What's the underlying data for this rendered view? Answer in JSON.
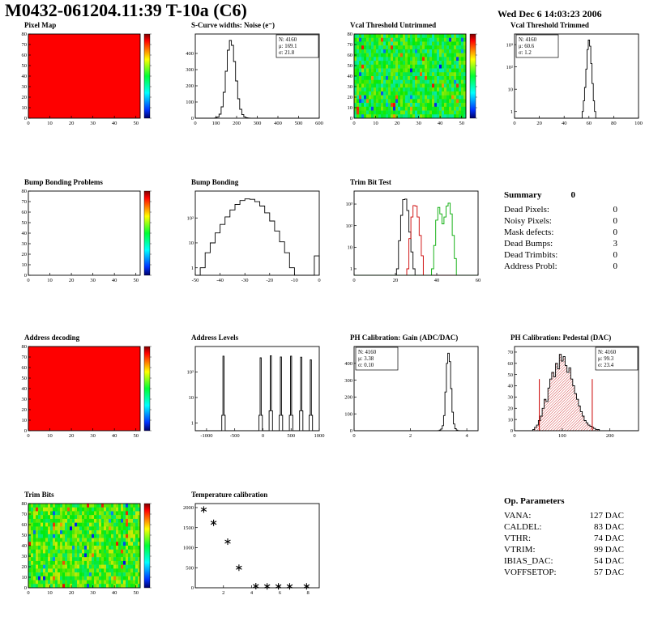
{
  "header": {
    "title": "M0432-061204.11:39 T-10a (C6)",
    "timestamp": "Wed Dec 6 14:03:23 2006"
  },
  "summary": {
    "title": "Summary",
    "count": "0",
    "rows": [
      {
        "label": "Dead Pixels:",
        "value": "0"
      },
      {
        "label": "Noisy Pixels:",
        "value": "0"
      },
      {
        "label": "Mask defects:",
        "value": "0"
      },
      {
        "label": "Dead Bumps:",
        "value": "3"
      },
      {
        "label": "Dead Trimbits:",
        "value": "0"
      },
      {
        "label": "Address Probl:",
        "value": "0"
      }
    ]
  },
  "op_parameters": {
    "title": "Op. Parameters",
    "rows": [
      {
        "label": "VANA:",
        "value": "127 DAC"
      },
      {
        "label": "CALDEL:",
        "value": "83 DAC"
      },
      {
        "label": "VTHR:",
        "value": "74 DAC"
      },
      {
        "label": "VTRIM:",
        "value": "99 DAC"
      },
      {
        "label": "IBIAS_DAC:",
        "value": "54 DAC"
      },
      {
        "label": "VOFFSETOP:",
        "value": "57 DAC"
      }
    ]
  },
  "colors": {
    "accent_red": "#cc0000",
    "hist_line": "#000000",
    "trim_green": "#00aa00",
    "heat_red": "#fe0000"
  },
  "chart_data": [
    {
      "title": "Pixel Map",
      "type": "heatmap",
      "heat": "red",
      "colorbar": true,
      "xlim": [
        0,
        52
      ],
      "ylim": [
        0,
        80
      ],
      "x_ticks": [
        0,
        10,
        20,
        30,
        40,
        50
      ],
      "y_ticks": [
        0,
        10,
        20,
        30,
        40,
        50,
        60,
        70,
        80
      ]
    },
    {
      "title": "S-Curve widths: Noise (e⁻)",
      "type": "hist",
      "xlim": [
        0,
        600
      ],
      "ylim": [
        0,
        520
      ],
      "x_ticks": [
        0,
        100,
        200,
        300,
        400,
        500,
        600
      ],
      "y_ticks": [
        0,
        100,
        200,
        300,
        400
      ],
      "binw": 10,
      "points": [
        [
          100,
          2
        ],
        [
          110,
          8
        ],
        [
          120,
          25
        ],
        [
          130,
          70
        ],
        [
          140,
          160
        ],
        [
          150,
          290
        ],
        [
          160,
          420
        ],
        [
          170,
          480
        ],
        [
          180,
          450
        ],
        [
          190,
          350
        ],
        [
          200,
          230
        ],
        [
          210,
          120
        ],
        [
          220,
          55
        ],
        [
          230,
          22
        ],
        [
          240,
          8
        ],
        [
          250,
          3
        ],
        [
          260,
          1
        ]
      ],
      "stats": {
        "pos": "tr",
        "lines": [
          "N: 4160",
          "μ: 169.1",
          "σ: 21.8"
        ]
      }
    },
    {
      "title": "Vcal Threshold Untrimmed",
      "type": "heatmap",
      "heat": "noise",
      "noise_base": 0.48,
      "colorbar": true,
      "xlim": [
        0,
        52
      ],
      "ylim": [
        0,
        80
      ],
      "x_ticks": [
        0,
        10,
        20,
        30,
        40,
        50
      ],
      "y_ticks": [
        0,
        10,
        20,
        30,
        40,
        50,
        60,
        70,
        80
      ]
    },
    {
      "title": "Vcal Threshold Trimmed",
      "type": "hist",
      "ylog": true,
      "xlim": [
        0,
        100
      ],
      "ylim": [
        0.5,
        3000
      ],
      "x_ticks": [
        0,
        20,
        40,
        60,
        80,
        100
      ],
      "y_ticks": [
        [
          1,
          "1"
        ],
        [
          10,
          "10"
        ],
        [
          100,
          "10²"
        ],
        [
          1000,
          "10³"
        ]
      ],
      "binw": 1,
      "points": [
        [
          55,
          1
        ],
        [
          56,
          3
        ],
        [
          57,
          12
        ],
        [
          58,
          80
        ],
        [
          59,
          600
        ],
        [
          60,
          1600
        ],
        [
          61,
          850
        ],
        [
          62,
          140
        ],
        [
          63,
          18
        ],
        [
          64,
          3
        ],
        [
          65,
          1
        ]
      ],
      "stats": {
        "pos": "tl",
        "lines": [
          "N: 4160",
          "μ: 60.6",
          "σ: 1.2"
        ]
      }
    },
    {
      "title": "Bump Bonding Problems",
      "type": "heatmap",
      "heat": "empty",
      "colorbar": true,
      "xlim": [
        0,
        52
      ],
      "ylim": [
        0,
        80
      ],
      "x_ticks": [
        0,
        10,
        20,
        30,
        40,
        50
      ],
      "y_ticks": [
        0,
        10,
        20,
        30,
        40,
        50,
        60,
        70,
        80
      ]
    },
    {
      "title": "Bump Bonding",
      "type": "hist",
      "ylog": true,
      "xlim": [
        -50,
        0
      ],
      "ylim": [
        0.5,
        1200
      ],
      "x_ticks": [
        -50,
        -40,
        -30,
        -20,
        -10,
        0
      ],
      "y_ticks": [
        [
          1,
          "1"
        ],
        [
          10,
          "10"
        ],
        [
          100,
          "10²"
        ]
      ],
      "binw": 2,
      "points": [
        [
          -49,
          0
        ],
        [
          -47,
          1
        ],
        [
          -45,
          4
        ],
        [
          -43,
          10
        ],
        [
          -41,
          25
        ],
        [
          -39,
          55
        ],
        [
          -37,
          110
        ],
        [
          -35,
          210
        ],
        [
          -33,
          350
        ],
        [
          -31,
          500
        ],
        [
          -29,
          580
        ],
        [
          -27,
          560
        ],
        [
          -25,
          450
        ],
        [
          -23,
          300
        ],
        [
          -21,
          160
        ],
        [
          -19,
          75
        ],
        [
          -17,
          30
        ],
        [
          -15,
          11
        ],
        [
          -13,
          4
        ],
        [
          -11,
          1
        ],
        [
          -9,
          0
        ],
        [
          -7,
          0
        ],
        [
          -5,
          0
        ],
        [
          -3,
          0
        ],
        [
          -1,
          3
        ]
      ]
    },
    {
      "title": "Trim Bit Test",
      "type": "hist",
      "ylog": true,
      "xlim": [
        0,
        60
      ],
      "ylim": [
        0.5,
        4000
      ],
      "x_ticks": [
        0,
        20,
        40,
        60
      ],
      "y_ticks": [
        [
          1,
          "1"
        ],
        [
          10,
          "10"
        ],
        [
          100,
          "10²"
        ],
        [
          1000,
          "10³"
        ]
      ],
      "series": [
        {
          "color": "#000000",
          "binw": 1,
          "points": [
            [
              21,
              1
            ],
            [
              22,
              20
            ],
            [
              23,
              300
            ],
            [
              24,
              1600
            ],
            [
              25,
              1700
            ],
            [
              26,
              500
            ],
            [
              27,
              50
            ],
            [
              28,
              6
            ],
            [
              29,
              1
            ]
          ]
        },
        {
          "color": "#cc0000",
          "binw": 1,
          "points": [
            [
              26,
              1
            ],
            [
              27,
              25
            ],
            [
              28,
              250
            ],
            [
              29,
              850
            ],
            [
              30,
              800
            ],
            [
              31,
              250
            ],
            [
              32,
              35
            ],
            [
              33,
              4
            ]
          ]
        },
        {
          "color": "#00aa00",
          "binw": 1,
          "points": [
            [
              38,
              1
            ],
            [
              39,
              12
            ],
            [
              40,
              180
            ],
            [
              41,
              700
            ],
            [
              42,
              350
            ],
            [
              43,
              120
            ],
            [
              44,
              250
            ],
            [
              45,
              800
            ],
            [
              46,
              1100
            ],
            [
              47,
              350
            ],
            [
              48,
              35
            ],
            [
              49,
              3
            ]
          ]
        }
      ]
    },
    {
      "title": "Address decoding",
      "type": "heatmap",
      "heat": "red",
      "colorbar": true,
      "xlim": [
        0,
        52
      ],
      "ylim": [
        0,
        80
      ],
      "x_ticks": [
        0,
        10,
        20,
        30,
        40,
        50
      ],
      "y_ticks": [
        0,
        10,
        20,
        30,
        40,
        50,
        60,
        70,
        80
      ]
    },
    {
      "title": "Address Levels",
      "type": "hist",
      "ylog": true,
      "xlim": [
        -1200,
        1000
      ],
      "ylim": [
        0.5,
        1000
      ],
      "x_ticks": [
        -1000,
        -500,
        0,
        500,
        1000
      ],
      "y_ticks": [
        [
          1,
          "1"
        ],
        [
          10,
          "10"
        ],
        [
          100,
          "10²"
        ]
      ],
      "binw": 20,
      "points": [
        [
          -720,
          2
        ],
        [
          -700,
          420
        ],
        [
          -680,
          2
        ],
        [
          -60,
          2
        ],
        [
          -40,
          360
        ],
        [
          -20,
          2
        ],
        [
          120,
          3
        ],
        [
          140,
          430
        ],
        [
          160,
          3
        ],
        [
          300,
          2
        ],
        [
          320,
          390
        ],
        [
          340,
          2
        ],
        [
          480,
          2
        ],
        [
          500,
          420
        ],
        [
          520,
          2
        ],
        [
          660,
          3
        ],
        [
          680,
          380
        ],
        [
          700,
          3
        ],
        [
          830,
          2
        ],
        [
          850,
          300
        ],
        [
          870,
          2
        ]
      ]
    },
    {
      "title": "PH Calibration: Gain (ADC/DAC)",
      "type": "hist",
      "xlim": [
        0,
        4.4
      ],
      "ylim": [
        0,
        500
      ],
      "x_ticks": [
        0,
        2,
        4
      ],
      "y_ticks": [
        0,
        100,
        200,
        300,
        400
      ],
      "binw": 0.05,
      "points": [
        [
          3,
          1
        ],
        [
          3.05,
          4
        ],
        [
          3.1,
          10
        ],
        [
          3.15,
          30
        ],
        [
          3.2,
          90
        ],
        [
          3.25,
          230
        ],
        [
          3.3,
          400
        ],
        [
          3.35,
          460
        ],
        [
          3.4,
          410
        ],
        [
          3.45,
          250
        ],
        [
          3.5,
          110
        ],
        [
          3.55,
          40
        ],
        [
          3.6,
          12
        ],
        [
          3.65,
          4
        ],
        [
          3.7,
          1
        ]
      ],
      "stats": {
        "pos": "tl",
        "lines": [
          "N: 4160",
          "μ: 3.38",
          "σ: 0.10"
        ]
      }
    },
    {
      "title": "PH Calibration: Pedestal (DAC)",
      "type": "hist",
      "xlim": [
        0,
        260
      ],
      "ylim": [
        0,
        75
      ],
      "x_ticks": [
        0,
        100,
        200
      ],
      "y_ticks": [
        0,
        10,
        20,
        30,
        40,
        50,
        60,
        70
      ],
      "binw": 4,
      "fill": "red-hatch",
      "points": [
        [
          40,
          1
        ],
        [
          44,
          3
        ],
        [
          48,
          5
        ],
        [
          52,
          9
        ],
        [
          56,
          13
        ],
        [
          60,
          20
        ],
        [
          64,
          28
        ],
        [
          68,
          26
        ],
        [
          72,
          38
        ],
        [
          76,
          46
        ],
        [
          80,
          52
        ],
        [
          84,
          48
        ],
        [
          88,
          60
        ],
        [
          92,
          55
        ],
        [
          96,
          68
        ],
        [
          100,
          62
        ],
        [
          104,
          66
        ],
        [
          108,
          58
        ],
        [
          112,
          52
        ],
        [
          116,
          56
        ],
        [
          120,
          46
        ],
        [
          124,
          40
        ],
        [
          128,
          33
        ],
        [
          132,
          28
        ],
        [
          136,
          22
        ],
        [
          140,
          17
        ],
        [
          144,
          13
        ],
        [
          148,
          9
        ],
        [
          152,
          7
        ],
        [
          156,
          5
        ],
        [
          160,
          4
        ],
        [
          164,
          3
        ],
        [
          168,
          2
        ],
        [
          172,
          1
        ],
        [
          176,
          1
        ]
      ],
      "cut_lines": [
        {
          "x": 52,
          "y": 46
        },
        {
          "x": 163,
          "y": 46
        }
      ],
      "stats": {
        "pos": "tr",
        "lines": [
          "N: 4160",
          "μ: 99.3",
          "σ: 23.4"
        ],
        "line_colors": [
          "#000000",
          "#cc0000",
          "#cc0000"
        ]
      }
    },
    {
      "title": "Trim Bits",
      "type": "heatmap",
      "heat": "noise",
      "noise_base": 0.55,
      "colorbar": true,
      "xlim": [
        0,
        52
      ],
      "ylim": [
        0,
        80
      ],
      "x_ticks": [
        0,
        10,
        20,
        30,
        40,
        50
      ],
      "y_ticks": [
        0,
        10,
        20,
        30,
        40,
        50,
        60,
        70,
        80
      ]
    },
    {
      "title": "Temperature calibration",
      "type": "scatter",
      "xlim": [
        0,
        8.8
      ],
      "ylim": [
        0,
        2100
      ],
      "x_ticks": [
        2,
        4,
        6,
        8
      ],
      "y_ticks": [
        0,
        500,
        1000,
        1500,
        2000
      ],
      "marker": "asterisk",
      "points": [
        [
          0.6,
          1950
        ],
        [
          1.3,
          1620
        ],
        [
          2.3,
          1150
        ],
        [
          3.1,
          500
        ],
        [
          4.3,
          40
        ],
        [
          5.1,
          35
        ],
        [
          5.9,
          35
        ],
        [
          6.7,
          35
        ],
        [
          7.9,
          35
        ]
      ]
    }
  ]
}
